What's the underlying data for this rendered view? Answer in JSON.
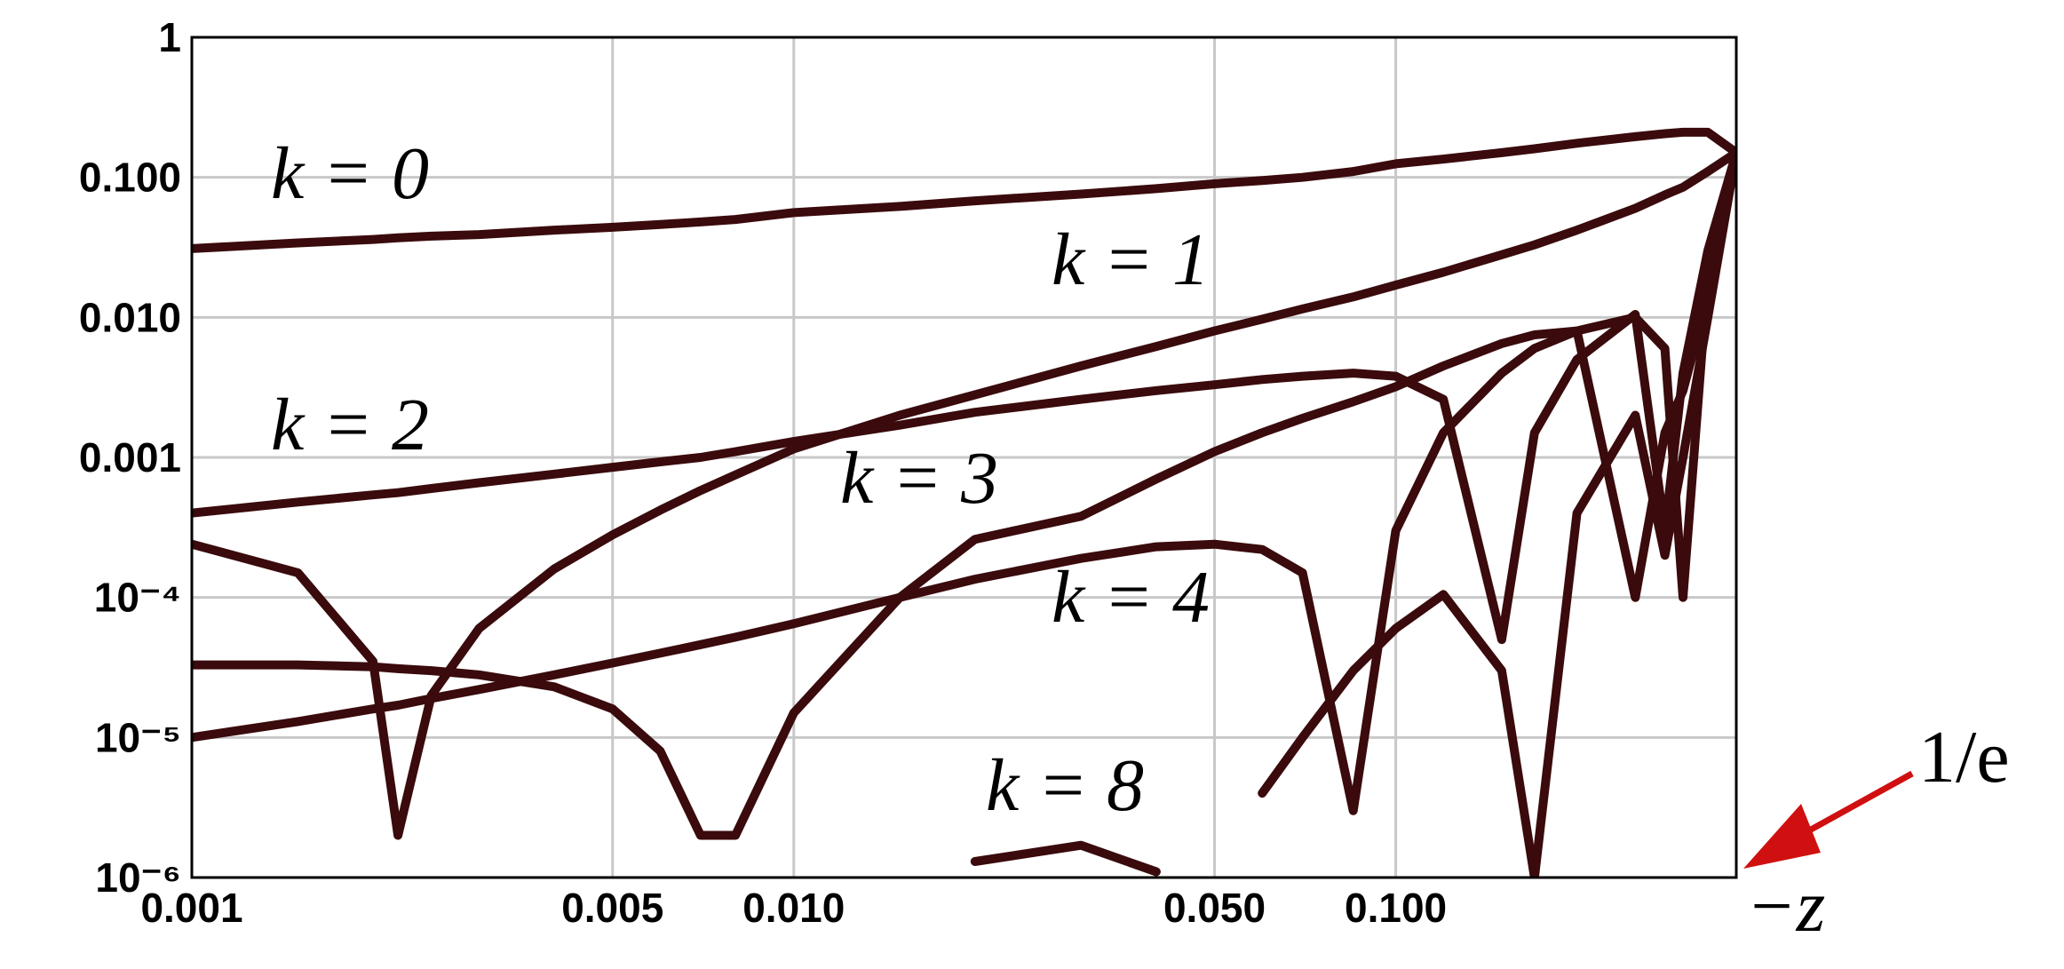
{
  "chart_data": {
    "type": "line",
    "x_label": "−z",
    "xscale": "log",
    "yscale": "log",
    "xlim": [
      0.001,
      0.36788
    ],
    "ylim": [
      1e-06,
      1
    ],
    "xticks": [
      0.001,
      0.005,
      {
        "value": 0.01,
        "label": "0.010"
      },
      {
        "value": 0.05,
        "label": "0.050"
      },
      {
        "value": 0.1,
        "label": "0.100"
      }
    ],
    "yticks": [
      {
        "value": 1e-06,
        "label": "10⁻⁶"
      },
      {
        "value": 1e-05,
        "label": "10⁻⁵"
      },
      {
        "value": 0.0001,
        "label": "10⁻⁴"
      },
      0.001,
      {
        "value": 0.01,
        "label": "0.010"
      },
      {
        "value": 0.1,
        "label": "0.100"
      },
      1
    ],
    "grid": true,
    "annotations": [
      "1/e"
    ],
    "x": [
      0.001,
      0.0015,
      0.002,
      0.0022,
      0.0025,
      0.003,
      0.004,
      0.005,
      0.006,
      0.007,
      0.008,
      0.01,
      0.015,
      0.02,
      0.03,
      0.04,
      0.05,
      0.06,
      0.07,
      0.085,
      0.1,
      0.12,
      0.15,
      0.17,
      0.2,
      0.25,
      0.28,
      0.3,
      0.33,
      0.36788
    ],
    "series": [
      {
        "name": "k = 0",
        "color": "#3a0a0c",
        "values": [
          0.031,
          0.034,
          0.036,
          0.037,
          0.038,
          0.039,
          0.042,
          0.044,
          0.046,
          0.048,
          0.05,
          0.056,
          0.062,
          0.068,
          0.076,
          0.083,
          0.09,
          0.095,
          0.1,
          0.11,
          0.125,
          0.135,
          0.15,
          0.16,
          0.175,
          0.195,
          0.205,
          0.21,
          0.21,
          0.15
        ]
      },
      {
        "name": "k = 1",
        "color": "#3a0a0c",
        "values": [
          0.00024,
          0.00015,
          3.5e-05,
          2e-06,
          2e-05,
          6e-05,
          0.00016,
          0.00028,
          0.00042,
          0.00058,
          0.00075,
          0.00115,
          0.002,
          0.0028,
          0.0045,
          0.0062,
          0.008,
          0.0097,
          0.0115,
          0.014,
          0.017,
          0.021,
          0.028,
          0.033,
          0.042,
          0.06,
          0.075,
          0.085,
          0.11,
          0.15
        ]
      },
      {
        "name": "k = 2",
        "color": "#3a0a0c",
        "values": [
          0.0004,
          0.00048,
          0.00054,
          0.00056,
          0.0006,
          0.00066,
          0.00076,
          0.00085,
          0.00093,
          0.001,
          0.0011,
          0.0013,
          0.0017,
          0.0021,
          0.0026,
          0.003,
          0.0033,
          0.0036,
          0.0038,
          0.004,
          0.0038,
          0.0026,
          5e-05,
          0.0015,
          0.005,
          0.0105,
          0.0003,
          0.004,
          0.03,
          0.15
        ]
      },
      {
        "name": "k = 3",
        "color": "#3a0a0c",
        "values": [
          3.3e-05,
          3.3e-05,
          3.2e-05,
          3.1e-05,
          3e-05,
          2.8e-05,
          2.3e-05,
          1.6e-05,
          8e-06,
          2e-06,
          2e-06,
          1.5e-05,
          0.0001,
          0.00026,
          0.00038,
          0.0007,
          0.0011,
          0.0015,
          0.0019,
          0.0025,
          0.0032,
          0.0045,
          0.0065,
          0.0075,
          0.008,
          0.0001,
          0.0015,
          0.003,
          0.014,
          0.15
        ]
      },
      {
        "name": "k = 4",
        "color": "#3a0a0c",
        "values": [
          1e-05,
          1.3e-05,
          1.6e-05,
          1.7e-05,
          1.9e-05,
          2.2e-05,
          2.8e-05,
          3.4e-05,
          4e-05,
          4.6e-05,
          5.2e-05,
          6.5e-05,
          0.0001,
          0.000135,
          0.00019,
          0.00023,
          0.00024,
          0.00022,
          0.00015,
          3e-06,
          0.0003,
          0.0015,
          0.004,
          0.006,
          0.008,
          0.01,
          0.006,
          0.0001,
          0.02,
          0.15
        ]
      },
      {
        "name": "k = 8",
        "color": "#3a0a0c",
        "values": [
          null,
          null,
          null,
          null,
          null,
          null,
          null,
          null,
          null,
          null,
          null,
          null,
          null,
          1.3e-06,
          1.7e-06,
          1.1e-06,
          null,
          4e-06,
          1e-05,
          3e-05,
          6e-05,
          0.000105,
          3e-05,
          1e-06,
          0.0004,
          0.002,
          0.0002,
          0.001,
          0.01,
          0.15
        ]
      }
    ]
  }
}
